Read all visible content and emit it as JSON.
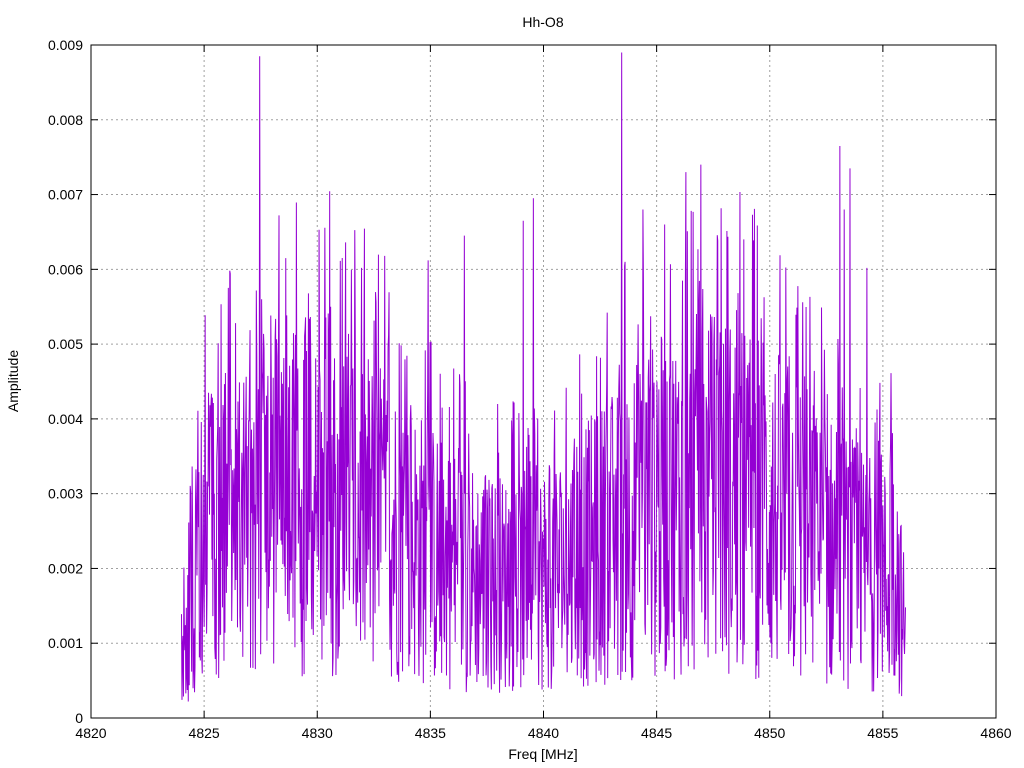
{
  "chart_data": {
    "type": "line",
    "title": "Hh-O8",
    "xlabel": "Freq [MHz]",
    "ylabel": "Amplitude",
    "xlim": [
      4820,
      4860
    ],
    "ylim": [
      0,
      0.009
    ],
    "x_ticks": [
      4820,
      4825,
      4830,
      4835,
      4840,
      4845,
      4850,
      4855,
      4860
    ],
    "x_tick_labels": [
      "4820",
      "4825",
      "4830",
      "4835",
      "4840",
      "4845",
      "4850",
      "4855",
      "4860"
    ],
    "y_ticks": [
      0,
      0.001,
      0.002,
      0.003,
      0.004,
      0.005,
      0.006,
      0.007,
      0.008,
      0.009
    ],
    "y_tick_labels": [
      "0",
      "0.001",
      "0.002",
      "0.003",
      "0.004",
      "0.005",
      "0.006",
      "0.007",
      "0.008",
      "0.009"
    ],
    "grid": true,
    "series_color": "#9400d3",
    "series": [
      {
        "x_start": 4824.0,
        "x_end": 4856.0,
        "peaks": [
          {
            "x": 4827.45,
            "y": 0.00885
          },
          {
            "x": 4843.45,
            "y": 0.0089
          },
          {
            "x": 4853.1,
            "y": 0.00765
          },
          {
            "x": 4853.55,
            "y": 0.00735
          },
          {
            "x": 4846.95,
            "y": 0.0074
          },
          {
            "x": 4846.3,
            "y": 0.0073
          },
          {
            "x": 4839.55,
            "y": 0.00695
          },
          {
            "x": 4839.1,
            "y": 0.00665
          },
          {
            "x": 4844.4,
            "y": 0.0068
          },
          {
            "x": 4845.35,
            "y": 0.0066
          },
          {
            "x": 4853.3,
            "y": 0.0068
          },
          {
            "x": 4828.6,
            "y": 0.00615
          },
          {
            "x": 4834.9,
            "y": 0.00612
          },
          {
            "x": 4836.5,
            "y": 0.00645
          },
          {
            "x": 4843.6,
            "y": 0.0061
          },
          {
            "x": 4848.85,
            "y": 0.0064
          },
          {
            "x": 4854.3,
            "y": 0.00602
          },
          {
            "x": 4831.95,
            "y": 0.00602
          },
          {
            "x": 4825.2,
            "y": 0.00435
          },
          {
            "x": 4826.4,
            "y": 0.00528
          },
          {
            "x": 4827.55,
            "y": 0.0056
          },
          {
            "x": 4830.6,
            "y": 0.0055
          }
        ]
      }
    ]
  }
}
